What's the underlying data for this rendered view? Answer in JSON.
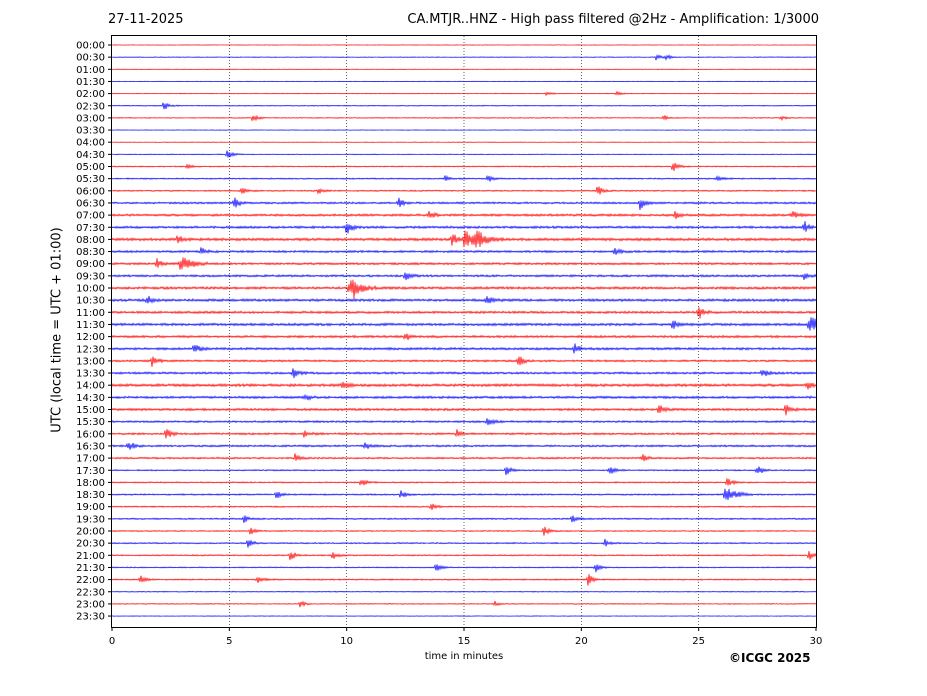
{
  "header": {
    "date": "27-11-2025",
    "title": "CA.MTJR..HNZ - High pass filtered @2Hz - Amplification: 1/3000"
  },
  "copyright": "©ICGC 2025",
  "colors": {
    "red": "#ff0000",
    "blue": "#0000ff",
    "grid": "#000000"
  },
  "chart_data": {
    "type": "line",
    "title": "CA.MTJR..HNZ - High pass filtered @2Hz - Amplification: 1/3000",
    "xlabel": "time in minutes",
    "ylabel": "UTC (local time = UTC + 01:00)",
    "xlim": [
      0,
      30
    ],
    "x_ticks": [
      "0",
      "5",
      "10",
      "15",
      "20",
      "25",
      "30"
    ],
    "grid": "vertical dotted lines every 5 minutes",
    "rows": [
      "00:00",
      "00:30",
      "01:00",
      "01:30",
      "02:00",
      "02:30",
      "03:00",
      "03:30",
      "04:00",
      "04:30",
      "05:00",
      "05:30",
      "06:00",
      "06:30",
      "07:00",
      "07:30",
      "08:00",
      "08:30",
      "09:00",
      "09:30",
      "10:00",
      "10:30",
      "11:00",
      "11:30",
      "12:00",
      "12:30",
      "13:00",
      "13:30",
      "14:00",
      "14:30",
      "15:00",
      "15:30",
      "16:00",
      "16:30",
      "17:00",
      "17:30",
      "18:00",
      "18:30",
      "19:00",
      "19:30",
      "20:00",
      "20:30",
      "21:00",
      "21:30",
      "22:00",
      "22:30",
      "23:00",
      "23:30"
    ],
    "row_colors": [
      "red",
      "blue",
      "red",
      "blue",
      "red",
      "blue",
      "red",
      "blue",
      "red",
      "blue",
      "red",
      "blue",
      "red",
      "blue",
      "red",
      "blue",
      "red",
      "blue",
      "red",
      "blue",
      "red",
      "blue",
      "red",
      "blue",
      "red",
      "blue",
      "red",
      "blue",
      "red",
      "blue",
      "red",
      "blue",
      "red",
      "blue",
      "red",
      "blue",
      "red",
      "blue",
      "red",
      "blue",
      "red",
      "blue",
      "red",
      "blue",
      "red",
      "blue",
      "red",
      "blue"
    ],
    "noise_level": [
      0.3,
      0.4,
      0.3,
      0.3,
      0.4,
      0.5,
      0.5,
      0.3,
      0.3,
      0.4,
      0.6,
      0.7,
      0.7,
      1.0,
      1.2,
      1.2,
      1.4,
      1.1,
      1.1,
      1.1,
      1.3,
      1.3,
      1.2,
      1.3,
      1.2,
      1.2,
      1.0,
      1.1,
      1.4,
      1.2,
      1.2,
      1.0,
      1.0,
      1.0,
      0.9,
      0.7,
      0.7,
      0.8,
      0.7,
      0.8,
      0.6,
      0.7,
      0.7,
      0.6,
      0.7,
      0.5,
      0.5,
      0.3
    ],
    "events": [
      {
        "row": "00:30",
        "minute": 23.2,
        "amp": 4
      },
      {
        "row": "00:30",
        "minute": 23.6,
        "amp": 3
      },
      {
        "row": "02:00",
        "minute": 18.5,
        "amp": 2
      },
      {
        "row": "02:00",
        "minute": 21.5,
        "amp": 2
      },
      {
        "row": "02:30",
        "minute": 2.2,
        "amp": 5
      },
      {
        "row": "03:00",
        "minute": 6.0,
        "amp": 5
      },
      {
        "row": "03:00",
        "minute": 23.5,
        "amp": 3
      },
      {
        "row": "03:00",
        "minute": 28.5,
        "amp": 2
      },
      {
        "row": "04:30",
        "minute": 4.9,
        "amp": 7
      },
      {
        "row": "05:00",
        "minute": 3.2,
        "amp": 3
      },
      {
        "row": "05:00",
        "minute": 23.9,
        "amp": 6
      },
      {
        "row": "05:30",
        "minute": 14.2,
        "amp": 3
      },
      {
        "row": "05:30",
        "minute": 16.0,
        "amp": 4
      },
      {
        "row": "05:30",
        "minute": 25.8,
        "amp": 3
      },
      {
        "row": "06:00",
        "minute": 5.5,
        "amp": 4
      },
      {
        "row": "06:00",
        "minute": 8.8,
        "amp": 3
      },
      {
        "row": "06:00",
        "minute": 20.7,
        "amp": 6
      },
      {
        "row": "06:30",
        "minute": 5.2,
        "amp": 6
      },
      {
        "row": "06:30",
        "minute": 12.2,
        "amp": 5
      },
      {
        "row": "06:30",
        "minute": 22.5,
        "amp": 7
      },
      {
        "row": "07:00",
        "minute": 13.5,
        "amp": 5
      },
      {
        "row": "07:00",
        "minute": 24.0,
        "amp": 4
      },
      {
        "row": "07:00",
        "minute": 29.0,
        "amp": 4
      },
      {
        "row": "07:30",
        "minute": 10.0,
        "amp": 7
      },
      {
        "row": "07:30",
        "minute": 29.5,
        "amp": 6
      },
      {
        "row": "08:00",
        "minute": 2.8,
        "amp": 5
      },
      {
        "row": "08:00",
        "minute": 15.0,
        "amp": 9
      },
      {
        "row": "08:00",
        "minute": 15.5,
        "amp": 8
      },
      {
        "row": "08:00",
        "minute": 14.5,
        "amp": 7
      },
      {
        "row": "08:30",
        "minute": 3.8,
        "amp": 4
      },
      {
        "row": "08:30",
        "minute": 21.4,
        "amp": 4
      },
      {
        "row": "09:00",
        "minute": 1.9,
        "amp": 5
      },
      {
        "row": "09:00",
        "minute": 2.9,
        "amp": 8
      },
      {
        "row": "09:30",
        "minute": 12.5,
        "amp": 5
      },
      {
        "row": "09:30",
        "minute": 29.5,
        "amp": 4
      },
      {
        "row": "10:00",
        "minute": 10.1,
        "amp": 8
      },
      {
        "row": "10:00",
        "minute": 10.3,
        "amp": 6
      },
      {
        "row": "10:30",
        "minute": 1.5,
        "amp": 5
      },
      {
        "row": "10:30",
        "minute": 16.0,
        "amp": 6
      },
      {
        "row": "11:00",
        "minute": 25.0,
        "amp": 7
      },
      {
        "row": "11:30",
        "minute": 29.7,
        "amp": 8
      },
      {
        "row": "11:30",
        "minute": 23.9,
        "amp": 5
      },
      {
        "row": "12:00",
        "minute": 12.5,
        "amp": 5
      },
      {
        "row": "12:30",
        "minute": 3.5,
        "amp": 6
      },
      {
        "row": "12:30",
        "minute": 19.7,
        "amp": 5
      },
      {
        "row": "13:00",
        "minute": 1.7,
        "amp": 7
      },
      {
        "row": "13:00",
        "minute": 17.3,
        "amp": 7
      },
      {
        "row": "13:30",
        "minute": 7.7,
        "amp": 6
      },
      {
        "row": "13:30",
        "minute": 27.7,
        "amp": 5
      },
      {
        "row": "14:00",
        "minute": 9.8,
        "amp": 4
      },
      {
        "row": "14:00",
        "minute": 29.6,
        "amp": 4
      },
      {
        "row": "14:30",
        "minute": 8.2,
        "amp": 4
      },
      {
        "row": "15:00",
        "minute": 23.3,
        "amp": 5
      },
      {
        "row": "15:00",
        "minute": 28.7,
        "amp": 6
      },
      {
        "row": "15:30",
        "minute": 16.0,
        "amp": 5
      },
      {
        "row": "16:00",
        "minute": 2.3,
        "amp": 6
      },
      {
        "row": "16:00",
        "minute": 8.2,
        "amp": 4
      },
      {
        "row": "16:00",
        "minute": 14.7,
        "amp": 4
      },
      {
        "row": "16:30",
        "minute": 0.7,
        "amp": 6
      },
      {
        "row": "16:30",
        "minute": 10.8,
        "amp": 4
      },
      {
        "row": "17:00",
        "minute": 7.8,
        "amp": 4
      },
      {
        "row": "17:00",
        "minute": 22.6,
        "amp": 4
      },
      {
        "row": "17:30",
        "minute": 16.8,
        "amp": 5
      },
      {
        "row": "17:30",
        "minute": 21.2,
        "amp": 5
      },
      {
        "row": "17:30",
        "minute": 27.5,
        "amp": 6
      },
      {
        "row": "18:00",
        "minute": 10.6,
        "amp": 5
      },
      {
        "row": "18:00",
        "minute": 26.2,
        "amp": 6
      },
      {
        "row": "18:30",
        "minute": 7.0,
        "amp": 4
      },
      {
        "row": "18:30",
        "minute": 12.3,
        "amp": 4
      },
      {
        "row": "18:30",
        "minute": 26.1,
        "amp": 8
      },
      {
        "row": "19:00",
        "minute": 13.6,
        "amp": 4
      },
      {
        "row": "19:30",
        "minute": 5.6,
        "amp": 4
      },
      {
        "row": "19:30",
        "minute": 19.6,
        "amp": 4
      },
      {
        "row": "20:00",
        "minute": 18.4,
        "amp": 5
      },
      {
        "row": "20:00",
        "minute": 5.9,
        "amp": 4
      },
      {
        "row": "20:30",
        "minute": 5.8,
        "amp": 5
      },
      {
        "row": "20:30",
        "minute": 21.0,
        "amp": 4
      },
      {
        "row": "21:00",
        "minute": 7.6,
        "amp": 6
      },
      {
        "row": "21:00",
        "minute": 29.7,
        "amp": 5
      },
      {
        "row": "21:00",
        "minute": 9.4,
        "amp": 4
      },
      {
        "row": "21:30",
        "minute": 13.8,
        "amp": 5
      },
      {
        "row": "21:30",
        "minute": 20.6,
        "amp": 5
      },
      {
        "row": "22:00",
        "minute": 1.2,
        "amp": 4
      },
      {
        "row": "22:00",
        "minute": 6.2,
        "amp": 5
      },
      {
        "row": "22:00",
        "minute": 20.3,
        "amp": 7
      },
      {
        "row": "23:00",
        "minute": 8.0,
        "amp": 4
      },
      {
        "row": "23:00",
        "minute": 16.3,
        "amp": 3
      }
    ]
  }
}
